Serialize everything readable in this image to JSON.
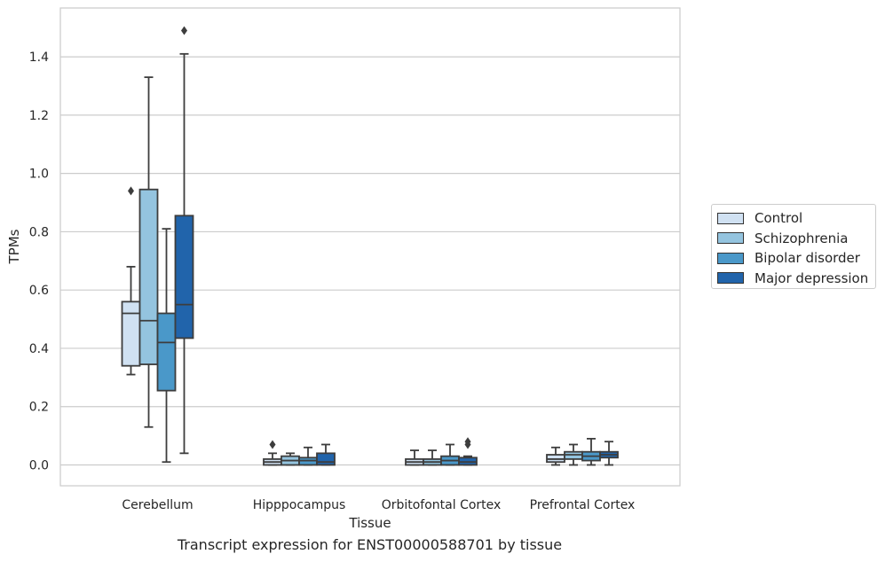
{
  "chart_data": {
    "type": "box",
    "xlabel": "Tissue",
    "ylabel": "TPMs",
    "caption": "Transcript expression for ENST00000588701 by tissue",
    "ylim": [
      -0.07,
      1.56
    ],
    "yticks": [
      "0.0",
      "0.2",
      "0.4",
      "0.6",
      "0.8",
      "1.0",
      "1.2",
      "1.4"
    ],
    "grid": "horizontal",
    "legend_position": "right",
    "categories": [
      "Cerebellum",
      "Hipppocampus",
      "Orbitofontal Cortex",
      "Prefrontal Cortex"
    ],
    "series": [
      {
        "name": "Control",
        "color": "#d0e1f2",
        "boxes": [
          {
            "whisker_low": 0.31,
            "q1": 0.34,
            "median": 0.52,
            "q3": 0.56,
            "whisker_high": 0.68,
            "outliers": [
              0.94
            ]
          },
          {
            "whisker_low": 0.0,
            "q1": 0.0,
            "median": 0.01,
            "q3": 0.02,
            "whisker_high": 0.04,
            "outliers": [
              0.07
            ]
          },
          {
            "whisker_low": 0.0,
            "q1": 0.0,
            "median": 0.01,
            "q3": 0.02,
            "whisker_high": 0.05,
            "outliers": []
          },
          {
            "whisker_low": 0.0,
            "q1": 0.01,
            "median": 0.02,
            "q3": 0.035,
            "whisker_high": 0.06,
            "outliers": []
          }
        ]
      },
      {
        "name": "Schizophrenia",
        "color": "#94c4df",
        "boxes": [
          {
            "whisker_low": 0.13,
            "q1": 0.345,
            "median": 0.495,
            "q3": 0.945,
            "whisker_high": 1.33,
            "outliers": []
          },
          {
            "whisker_low": 0.0,
            "q1": 0.0,
            "median": 0.015,
            "q3": 0.03,
            "whisker_high": 0.04,
            "outliers": []
          },
          {
            "whisker_low": 0.0,
            "q1": 0.0,
            "median": 0.01,
            "q3": 0.02,
            "whisker_high": 0.05,
            "outliers": []
          },
          {
            "whisker_low": 0.0,
            "q1": 0.02,
            "median": 0.035,
            "q3": 0.045,
            "whisker_high": 0.07,
            "outliers": []
          }
        ]
      },
      {
        "name": "Bipolar disorder",
        "color": "#4a98c9",
        "boxes": [
          {
            "whisker_low": 0.01,
            "q1": 0.255,
            "median": 0.42,
            "q3": 0.52,
            "whisker_high": 0.81,
            "outliers": []
          },
          {
            "whisker_low": 0.0,
            "q1": 0.0,
            "median": 0.015,
            "q3": 0.025,
            "whisker_high": 0.06,
            "outliers": []
          },
          {
            "whisker_low": 0.0,
            "q1": 0.0,
            "median": 0.015,
            "q3": 0.03,
            "whisker_high": 0.07,
            "outliers": []
          },
          {
            "whisker_low": 0.0,
            "q1": 0.015,
            "median": 0.03,
            "q3": 0.045,
            "whisker_high": 0.09,
            "outliers": []
          }
        ]
      },
      {
        "name": "Major depression",
        "color": "#2164ab",
        "boxes": [
          {
            "whisker_low": 0.04,
            "q1": 0.435,
            "median": 0.55,
            "q3": 0.855,
            "whisker_high": 1.41,
            "outliers": [
              1.49
            ]
          },
          {
            "whisker_low": 0.0,
            "q1": 0.0,
            "median": 0.01,
            "q3": 0.04,
            "whisker_high": 0.07,
            "outliers": []
          },
          {
            "whisker_low": 0.0,
            "q1": 0.0,
            "median": 0.01,
            "q3": 0.025,
            "whisker_high": 0.03,
            "outliers": [
              0.07,
              0.08
            ]
          },
          {
            "whisker_low": 0.0,
            "q1": 0.025,
            "median": 0.035,
            "q3": 0.045,
            "whisker_high": 0.08,
            "outliers": []
          }
        ]
      }
    ]
  }
}
